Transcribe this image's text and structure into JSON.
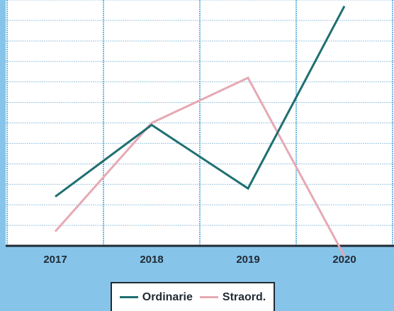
{
  "chart_data": {
    "type": "line",
    "categories": [
      "2017",
      "2018",
      "2019",
      "2020"
    ],
    "series": [
      {
        "name": "Ordinarie",
        "color": "#1f6f70",
        "values": [
          2.4,
          5.9,
          2.8,
          11.7
        ]
      },
      {
        "name": "Straord.",
        "color": "#e6a9b4",
        "values": [
          0.7,
          6.0,
          8.2,
          -0.5
        ]
      }
    ],
    "ylim": [
      0,
      12
    ],
    "grid": true,
    "legend_position": "bottom",
    "title": "",
    "xlabel": "",
    "ylabel": ""
  },
  "colors": {
    "background": "#87c4ea",
    "plot_area": "#ffffff",
    "gridline": "#9fc7df",
    "axis": "#1f2a33"
  }
}
